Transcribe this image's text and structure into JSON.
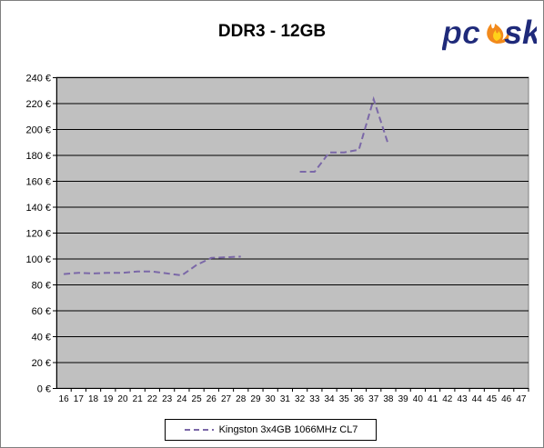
{
  "chart_data": {
    "type": "line",
    "title": "DDR3 - 12GB",
    "xlabel": "",
    "ylabel": "",
    "categories": [
      "16",
      "17",
      "18",
      "19",
      "20",
      "21",
      "22",
      "23",
      "24",
      "25",
      "26",
      "27",
      "28",
      "29",
      "30",
      "31",
      "32",
      "33",
      "34",
      "35",
      "36",
      "37",
      "38",
      "39",
      "40",
      "41",
      "42",
      "43",
      "44",
      "45",
      "46",
      "47"
    ],
    "ylim": [
      0,
      240
    ],
    "yticks": [
      0,
      20,
      40,
      60,
      80,
      100,
      120,
      140,
      160,
      180,
      200,
      220,
      240
    ],
    "y_unit_suffix": " €",
    "grid": true,
    "legend_position": "bottom",
    "series": [
      {
        "name": "Kingston 3x4GB 1066MHz CL7",
        "color": "#7b68a8",
        "values": [
          88,
          89,
          88.5,
          89,
          89,
          90,
          90,
          88.5,
          87,
          95,
          100.5,
          101,
          101.5,
          null,
          null,
          null,
          167,
          167,
          182,
          182,
          184,
          223,
          188,
          null,
          null,
          null,
          null,
          null,
          null,
          null,
          null,
          null
        ]
      }
    ],
    "colors": {
      "plot_background": "#c0c0c0",
      "gridline": "#000000"
    }
  },
  "logo": {
    "text_a": "pc",
    "text_b": "sk",
    "color_text": "#1f2a7a",
    "color_flame": "#f28a1c"
  }
}
